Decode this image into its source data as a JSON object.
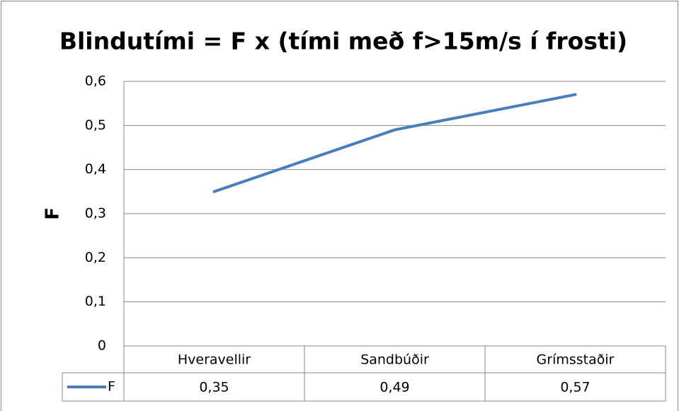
{
  "chart_data": {
    "type": "line",
    "title": "Blindutími = F x (tími með f>15m/s í frosti)",
    "y_label": "F",
    "categories": [
      "Hveravellir",
      "Sandbúðir",
      "Grímsstaðir"
    ],
    "series": [
      {
        "name": "F",
        "color": "#4a7ebb",
        "values": [
          0.35,
          0.49,
          0.57
        ],
        "value_labels": [
          "0,35",
          "0,49",
          "0,57"
        ]
      }
    ],
    "ylim": [
      0,
      0.6
    ],
    "yticks": [
      0,
      {
        "value": 0.1,
        "label": "0,1"
      },
      {
        "value": 0.2,
        "label": "0,2"
      },
      {
        "value": 0.3,
        "label": "0,3"
      },
      {
        "value": 0.4,
        "label": "0,4"
      },
      {
        "value": 0.5,
        "label": "0,5"
      },
      {
        "value": 0.6,
        "label": "0,6"
      }
    ],
    "grid": true,
    "data_table": true
  }
}
